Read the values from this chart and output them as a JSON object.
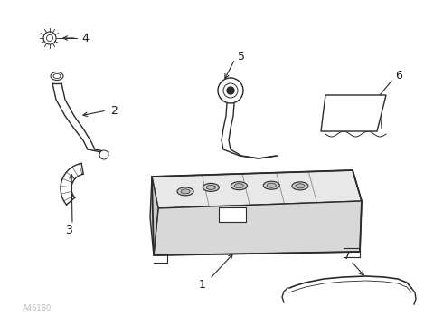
{
  "background_color": "#ffffff",
  "line_color": "#2a2a2a",
  "label_color": "#1a1a1a",
  "watermark_text": "A46180",
  "watermark_color": "#bbbbbb",
  "figsize": [
    4.9,
    3.6
  ],
  "dpi": 100
}
